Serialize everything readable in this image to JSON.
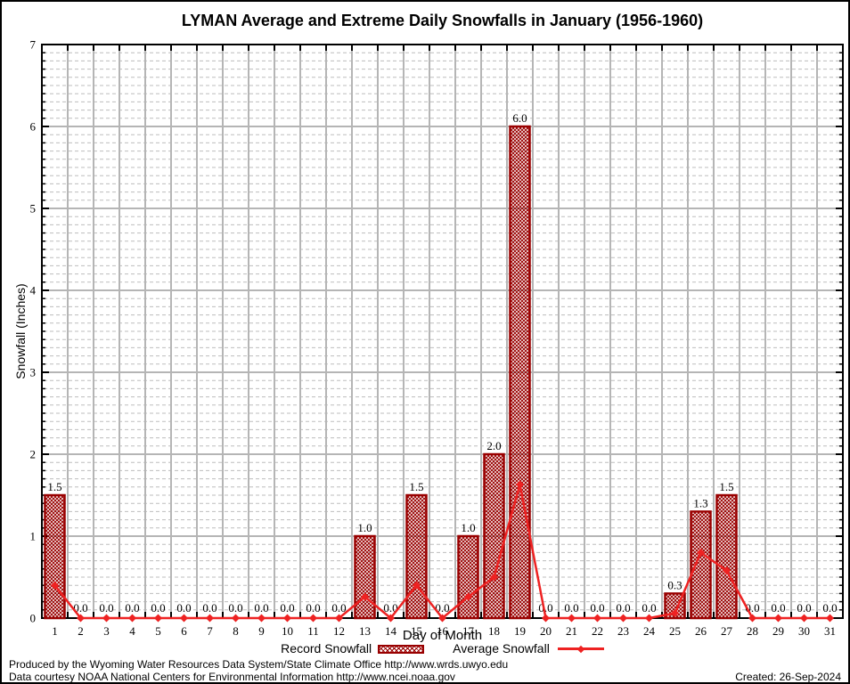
{
  "title": "LYMAN Average and Extreme Daily Snowfalls in January (1956-1960)",
  "chart_data": {
    "type": "bar+line",
    "title": "LYMAN Average and Extreme Daily Snowfalls in January (1956-1960)",
    "xlabel": "Day of Month",
    "ylabel": "Snowfall (Inches)",
    "categories": [
      1,
      2,
      3,
      4,
      5,
      6,
      7,
      8,
      9,
      10,
      11,
      12,
      13,
      14,
      15,
      16,
      17,
      18,
      19,
      20,
      21,
      22,
      23,
      24,
      25,
      26,
      27,
      28,
      29,
      30,
      31
    ],
    "series": [
      {
        "name": "Record Snowfall",
        "type": "bar",
        "values": [
          1.5,
          0,
          0,
          0,
          0,
          0,
          0,
          0,
          0,
          0,
          0,
          0,
          1.0,
          0,
          1.5,
          0,
          1.0,
          2.0,
          6.0,
          0,
          0,
          0,
          0,
          0,
          0.3,
          1.3,
          1.5,
          0,
          0,
          0,
          0
        ]
      },
      {
        "name": "Average Snowfall",
        "type": "line",
        "values": [
          0.4,
          0,
          0,
          0,
          0,
          0,
          0,
          0,
          0,
          0,
          0,
          0,
          0.26,
          0,
          0.4,
          0,
          0.26,
          0.5,
          1.63,
          0,
          0,
          0,
          0,
          0,
          0.06,
          0.8,
          0.58,
          0,
          0,
          0,
          0
        ]
      }
    ],
    "bar_value_labels": [
      "1.5",
      "0.0",
      "0.0",
      "0.0",
      "0.0",
      "0.0",
      "0.0",
      "0.0",
      "0.0",
      "0.0",
      "0.0",
      "0.0",
      "1.0",
      "0.0",
      "1.5",
      "0.0",
      "1.0",
      "2.0",
      "6.0",
      "0.0",
      "0.0",
      "0.0",
      "0.0",
      "0.0",
      "0.3",
      "1.3",
      "1.5",
      "0.0",
      "0.0",
      "0.0",
      "0.0"
    ],
    "ylim": [
      0,
      7
    ],
    "yticks": [
      0,
      1,
      2,
      3,
      4,
      5,
      6,
      7
    ],
    "y_minor_step": 0.1,
    "grid": true,
    "legend_position": "bottom"
  },
  "legend": {
    "record_label": "Record Snowfall",
    "average_label": "Average Snowfall"
  },
  "footer": {
    "line1": "Produced by the Wyoming Water Resources Data System/State Climate Office http://www.wrds.uwyo.edu",
    "line2": "Data courtesy NOAA National Centers for Environmental Information http://www.ncei.noaa.gov",
    "created": "Created: 26-Sep-2024"
  },
  "colors": {
    "bar": "#990000",
    "line": "#ee2222",
    "grid_major": "#b5b5b5",
    "grid_minor": "#bdbdbd",
    "frame": "#000000",
    "text": "#000000",
    "background": "#ffffff"
  }
}
